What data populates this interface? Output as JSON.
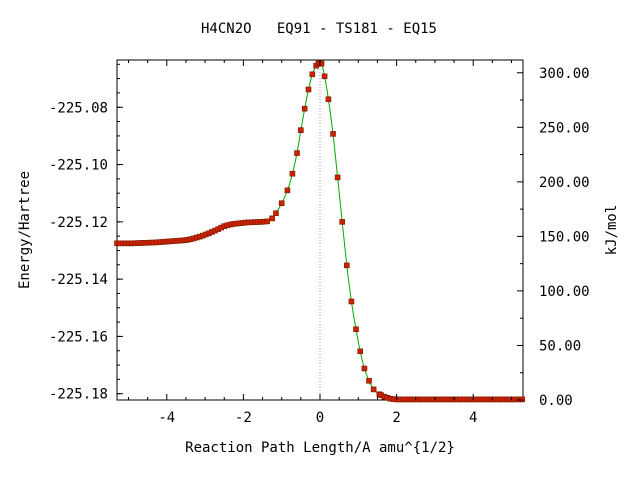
{
  "chart_data": {
    "type": "line",
    "title": "H4CN2O   EQ91 - TS181 - EQ15",
    "xlabel": "Reaction Path Length/A amu^{1/2}",
    "ylabel": "Energy/Hartree",
    "y2label": "kJ/mol",
    "xlim": [
      -5.3,
      5.3
    ],
    "ylim": [
      -225.1822,
      -225.0635
    ],
    "y2lim": [
      0.0,
      311.7
    ],
    "x_ticks": [
      -4,
      -2,
      0,
      2,
      4
    ],
    "x_tick_labels": [
      "-4",
      "-2",
      "0",
      "2",
      "4"
    ],
    "y_ticks": [
      -225.08,
      -225.1,
      -225.12,
      -225.14,
      -225.16,
      -225.18
    ],
    "y_tick_labels": [
      "-225.08",
      "-225.10",
      "-225.12",
      "-225.14",
      "-225.16",
      "-225.18"
    ],
    "y2_ticks": [
      300,
      250,
      200,
      150,
      100,
      50,
      0
    ],
    "y2_tick_labels": [
      "300.00",
      "250.00",
      "200.00",
      "150.00",
      "100.00",
      "50.00",
      "0.00"
    ],
    "ts_x": 0.0,
    "grid": false,
    "colors": {
      "line": "#00aa00",
      "marker": "#cc2200",
      "marker_edge": "#7a1a00",
      "ts_line": "#999999"
    },
    "series": [
      {
        "x": [
          -5.3,
          -5.1,
          -4.9,
          -4.7,
          -4.5,
          -4.3,
          -4.1,
          -3.9,
          -3.7,
          -3.5,
          -3.3,
          -3.1,
          -2.9,
          -2.7,
          -2.5,
          -2.3,
          -2.1,
          -1.9,
          -1.7,
          -1.5,
          -1.35,
          -1.25,
          -1.15,
          -1.0,
          -0.85,
          -0.72,
          -0.6,
          -0.5,
          -0.4,
          -0.3,
          -0.2,
          -0.1,
          -0.04,
          0.0,
          0.04,
          0.12,
          0.22,
          0.34,
          0.46,
          0.58,
          0.7,
          0.82,
          0.94,
          1.05,
          1.16,
          1.28,
          1.4,
          1.55,
          1.7,
          1.85,
          2.0,
          2.3,
          2.7,
          3.2,
          3.7,
          4.2,
          4.7,
          5.3
        ],
        "y": [
          -225.1275,
          -225.1275,
          -225.1275,
          -225.1274,
          -225.1273,
          -225.1272,
          -225.127,
          -225.1268,
          -225.1266,
          -225.1264,
          -225.1258,
          -225.125,
          -225.124,
          -225.1228,
          -225.1215,
          -225.1208,
          -225.1205,
          -225.1202,
          -225.1201,
          -225.12,
          -225.1198,
          -225.1188,
          -225.117,
          -225.1135,
          -225.109,
          -225.1032,
          -225.096,
          -225.088,
          -225.0805,
          -225.0738,
          -225.0685,
          -225.0655,
          -225.0645,
          -225.0645,
          -225.0648,
          -225.0692,
          -225.0772,
          -225.0893,
          -225.1045,
          -225.12,
          -225.1352,
          -225.1478,
          -225.1575,
          -225.1652,
          -225.1712,
          -225.1755,
          -225.1785,
          -225.1802,
          -225.1812,
          -225.1818,
          -225.182,
          -225.182,
          -225.182,
          -225.182,
          -225.182,
          -225.182,
          -225.182,
          -225.182
        ]
      }
    ]
  }
}
